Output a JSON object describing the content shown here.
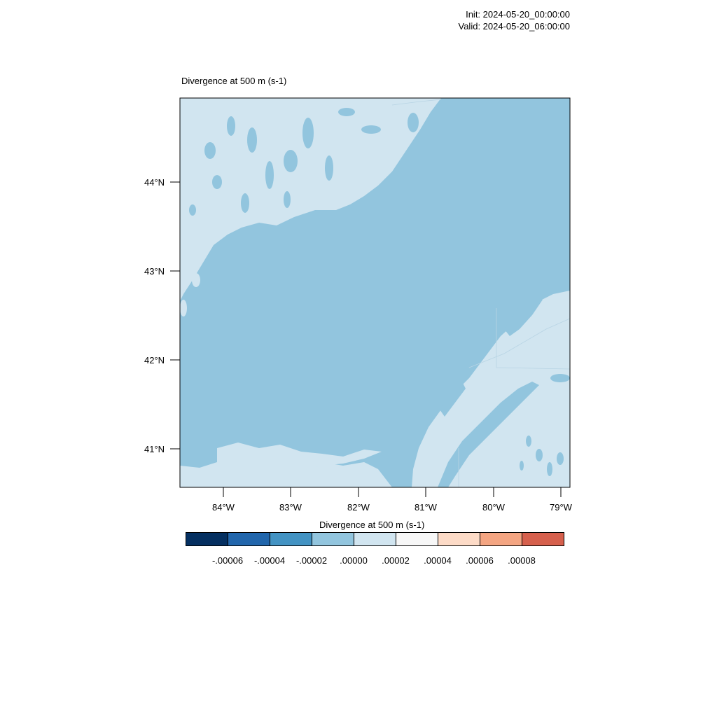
{
  "header": {
    "init": "Init: 2024-05-20_00:00:00",
    "valid": "Valid: 2024-05-20_06:00:00"
  },
  "plot": {
    "title": "Divergence at 500 m   (s-1)",
    "lat_ticks": [
      "44°N",
      "43°N",
      "42°N",
      "41°N"
    ],
    "lon_ticks": [
      "84°W",
      "83°W",
      "82°W",
      "81°W",
      "80°W",
      "79°W"
    ]
  },
  "colorbar": {
    "title": "Divergence at 500 m  (s-1)",
    "colors": [
      "#053061",
      "#2166ac",
      "#4393c3",
      "#92c5de",
      "#d1e5f0",
      "#f7f7f7",
      "#fddbc7",
      "#f4a582",
      "#d6604d"
    ],
    "labels": [
      "-.00006",
      "-.00004",
      "-.00002",
      ".00000",
      ".00002",
      ".00004",
      ".00006",
      ".00008"
    ]
  },
  "field_colors": {
    "negative_small": "#92c5de",
    "positive_small": "#d1e5f0"
  }
}
